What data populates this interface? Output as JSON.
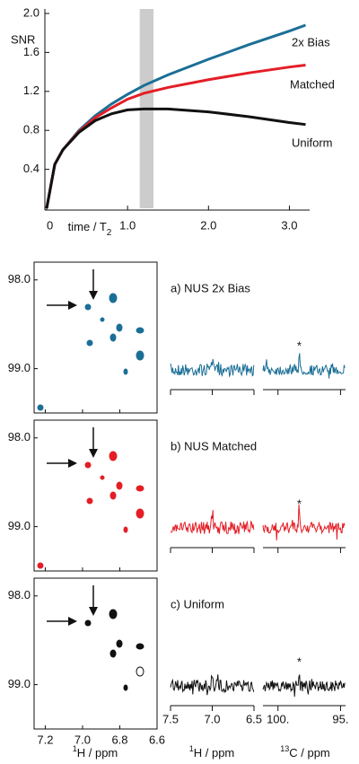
{
  "chart_data": {
    "type": "line",
    "y_label": "SNR",
    "x_label": "time / T",
    "x_label_sub": "2",
    "x": [
      0,
      0.1,
      0.2,
      0.4,
      0.6,
      0.8,
      1.0,
      1.2,
      1.5,
      2.0,
      2.5,
      3.0,
      3.2
    ],
    "series": [
      {
        "name": "2x Bias",
        "color": "#1b6f96",
        "values": [
          0,
          0.45,
          0.6,
          0.8,
          0.95,
          1.07,
          1.17,
          1.26,
          1.37,
          1.53,
          1.68,
          1.82,
          1.88
        ]
      },
      {
        "name": "Matched",
        "color": "#e41e26",
        "values": [
          0,
          0.45,
          0.6,
          0.79,
          0.93,
          1.03,
          1.12,
          1.18,
          1.24,
          1.32,
          1.39,
          1.45,
          1.47
        ]
      },
      {
        "name": "Uniform",
        "color": "#111111",
        "values": [
          0,
          0.45,
          0.6,
          0.78,
          0.9,
          0.97,
          1.01,
          1.02,
          1.02,
          0.99,
          0.94,
          0.88,
          0.86
        ]
      }
    ],
    "xlim": [
      0,
      3.25
    ],
    "ylim": [
      0,
      2.0
    ],
    "xticks": [
      {
        "value": 0,
        "label": "0"
      },
      {
        "value": 1,
        "label": "1.0"
      },
      {
        "value": 2,
        "label": "2.0"
      },
      {
        "value": 3,
        "label": "3.0"
      }
    ],
    "yticks": [
      {
        "value": 0.4,
        "label": "0.4"
      },
      {
        "value": 0.8,
        "label": "0.8"
      },
      {
        "value": 1.2,
        "label": "1.2"
      },
      {
        "value": 1.6,
        "label": "1.6"
      },
      {
        "value": 2,
        "label": "2.0"
      }
    ],
    "shaded_band": [
      1.15,
      1.32
    ],
    "band_color": "#cccccc"
  },
  "spectra": {
    "panels": [
      {
        "label": "a)  NUS 2x Bias",
        "color": "#1b6f96"
      },
      {
        "label": "b)  NUS Matched",
        "color": "#e41e26"
      },
      {
        "label": "c)  Uniform",
        "color": "#111111"
      }
    ],
    "asterisk": "*",
    "asterisk_ppm": 98.3,
    "h2d": {
      "xlim": [
        7.26,
        6.6
      ],
      "xticks": [
        {
          "value": 7.2,
          "label": "7.2"
        },
        {
          "value": 7.0,
          "label": "7.0"
        },
        {
          "value": 6.8,
          "label": "6.8"
        },
        {
          "value": 6.6,
          "label": "6.6"
        }
      ],
      "ylim": [
        97.8,
        99.5
      ],
      "yticks": [
        {
          "value": 98,
          "label": "98.0"
        },
        {
          "value": 99,
          "label": "99.0"
        }
      ],
      "x_label_sup": "1",
      "x_label": "H / ppm"
    },
    "h1d": {
      "xlim": [
        7.5,
        6.5
      ],
      "xticks": [
        {
          "value": 7.5,
          "label": "7.5"
        },
        {
          "value": 7,
          "label": "7.0"
        },
        {
          "value": 6.5,
          "label": "6.5"
        }
      ],
      "x_label_sup": "1",
      "x_label": "H / ppm"
    },
    "c1d": {
      "xlim": [
        101.2,
        94.6
      ],
      "xticks": [
        {
          "value": 100,
          "label": "100."
        },
        {
          "value": 95,
          "label": "95."
        }
      ],
      "x_label_sup": "13",
      "x_label": "C / ppm"
    }
  }
}
